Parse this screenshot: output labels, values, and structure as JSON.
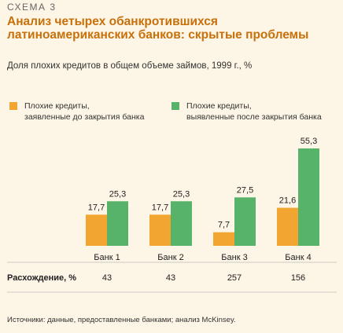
{
  "header": {
    "scheme_label": "СХЕМА 3",
    "title": "Анализ четырех обанкротившихся латиноамериканских банков: скрытые проблемы",
    "subtitle": "Доля плохих кредитов в общем объеме займов, 1999 г., %"
  },
  "legend": [
    {
      "label": "Плохие кредиты,\nзаявленные до закрытия банка",
      "color": "#f2a530"
    },
    {
      "label": "Плохие кредиты,\nвыявленные после закрытия банка",
      "color": "#57b26a"
    }
  ],
  "chart_data": {
    "type": "bar",
    "title": "Анализ четырех обанкротившихся латиноамериканских банков: скрытые проблемы",
    "subtitle": "Доля плохих кредитов в общем объеме займов, 1999 г., %",
    "categories": [
      "Банк 1",
      "Банк 2",
      "Банк 3",
      "Банк 4"
    ],
    "series": [
      {
        "name": "Плохие кредиты, заявленные до закрытия банка",
        "values": [
          17.7,
          17.7,
          7.7,
          21.6
        ],
        "labels": [
          "17,7",
          "17,7",
          "7,7",
          "21,6"
        ],
        "color": "#f2a530"
      },
      {
        "name": "Плохие кредиты, выявленные после закрытия банка",
        "values": [
          25.3,
          25.3,
          27.5,
          55.3
        ],
        "labels": [
          "25,3",
          "25,3",
          "27,5",
          "55,3"
        ],
        "color": "#57b26a"
      }
    ],
    "ylim": [
      0,
      55.3
    ],
    "grid": false,
    "legend_position": "top"
  },
  "divergence": {
    "label": "Расхождение, %",
    "values": [
      "43",
      "43",
      "257",
      "156"
    ]
  },
  "footer": {
    "source": "Источники: данные, предоставленные банками; анализ McKinsey."
  }
}
